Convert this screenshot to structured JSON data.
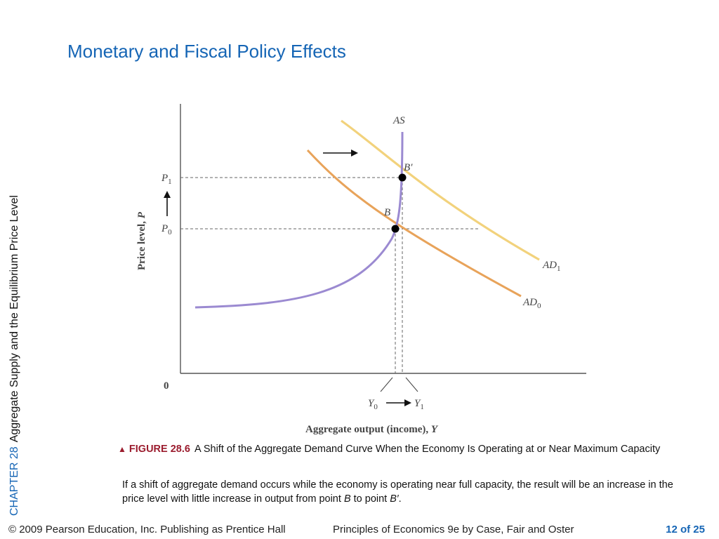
{
  "slide": {
    "title": "Monetary and Fiscal Policy Effects",
    "chapter_label": "CHAPTER 28",
    "chapter_title": "Aggregate Supply and the Equilibrium Price Level"
  },
  "figure": {
    "ylabel_text": "Price level, ",
    "ylabel_var": "P",
    "xlabel_text": "Aggregate output (income), ",
    "xlabel_var": "Y",
    "origin": "0",
    "p1_main": "P",
    "p1_sub": "1",
    "p0_main": "P",
    "p0_sub": "0",
    "y0_main": "Y",
    "y0_sub": "0",
    "y1_main": "Y",
    "y1_sub": "1",
    "as_label": "AS",
    "ad1_main": "AD",
    "ad1_sub": "1",
    "ad0_main": "AD",
    "ad0_sub": "0",
    "point_b": "B",
    "point_b_prime": "B′",
    "colors": {
      "as_curve": "#9b8ad1",
      "ad0_curve": "#e8a35a",
      "ad1_curve": "#f2d27c",
      "axis": "#555555",
      "guide": "#666666"
    }
  },
  "caption": {
    "triangle": "▲",
    "figure_label": "FIGURE 28.6",
    "heading": "A Shift of the Aggregate Demand Curve When the Economy Is Operating at or Near Maximum Capacity",
    "body_part1": "If a shift of aggregate demand occurs while the economy is operating near full capacity, the result will be an increase in the price level with little increase in output from point ",
    "body_b": "B",
    "body_part2": " to point ",
    "body_b_prime": "B′",
    "body_end": "."
  },
  "footer": {
    "copyright": "© 2009 Pearson Education, Inc. Publishing as Prentice Hall",
    "book": "Principles of Economics 9e by Case, Fair and Oster",
    "page": "12 of 25"
  }
}
